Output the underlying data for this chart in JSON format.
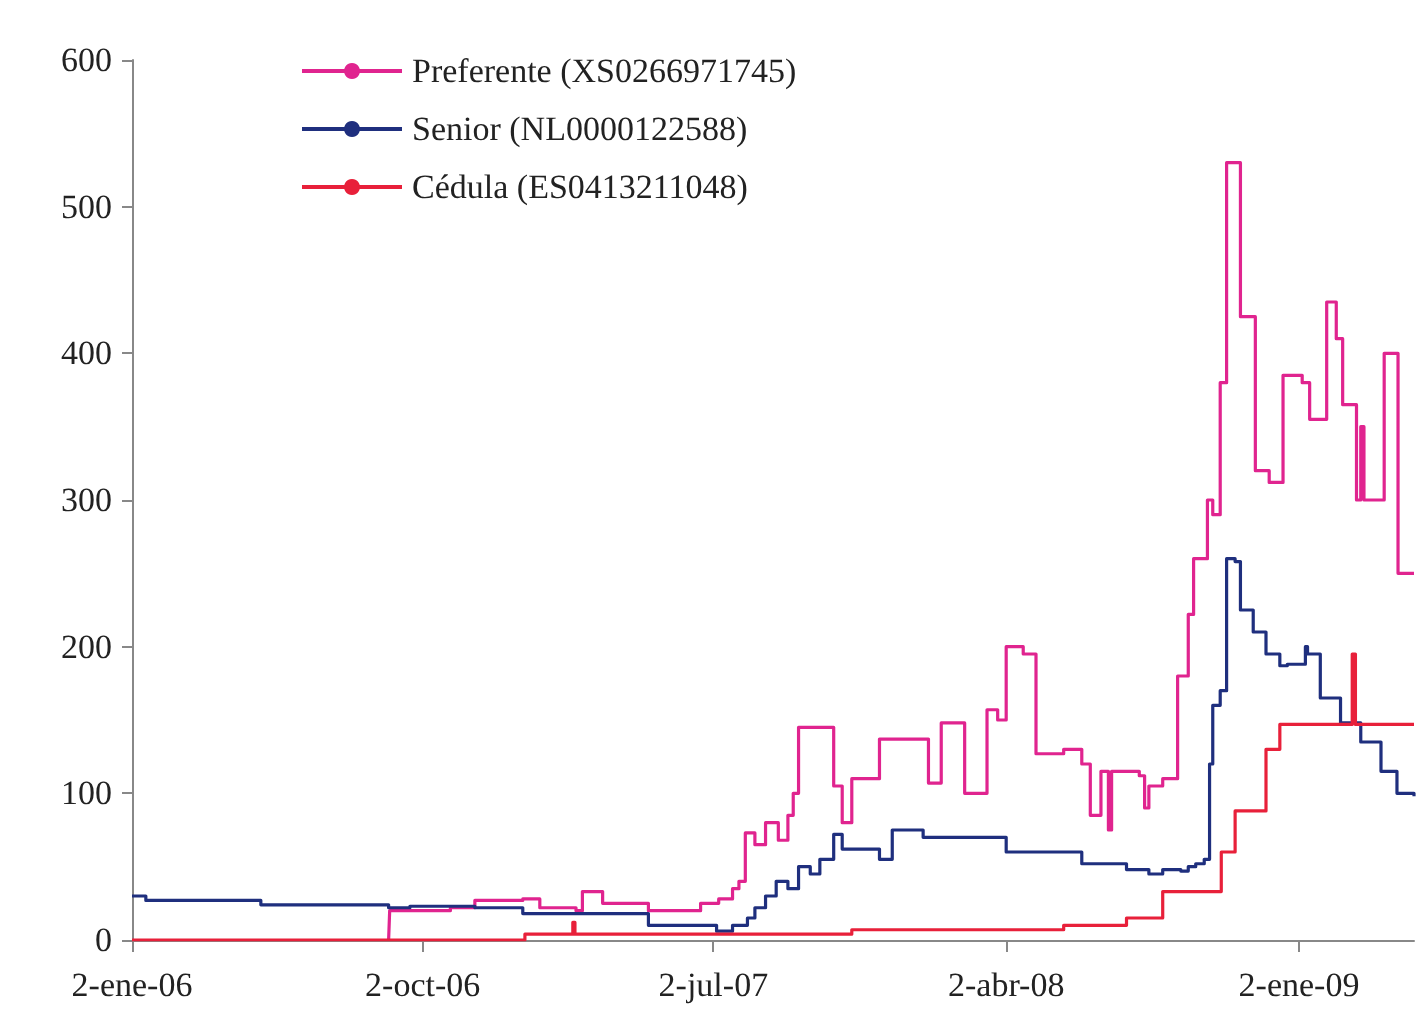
{
  "chart_data": {
    "type": "step",
    "xlim": [
      "2006-01-02",
      "2009-04-20"
    ],
    "ylim": [
      0,
      600
    ],
    "yticks": [
      0,
      100,
      200,
      300,
      400,
      500,
      600
    ],
    "xticks": [
      {
        "value": "2006-01-02",
        "label": "2-ene-06"
      },
      {
        "value": "2006-10-02",
        "label": "2-oct-06"
      },
      {
        "value": "2007-07-02",
        "label": "2-jul-07"
      },
      {
        "value": "2008-04-02",
        "label": "2-abr-08"
      },
      {
        "value": "2009-01-02",
        "label": "2-ene-09"
      }
    ],
    "grid": false,
    "legend": "top left",
    "marker": "none",
    "line_style": "solid",
    "series": [
      {
        "name": "Preferente (XS0266971745)",
        "color": "#e0248f",
        "x": [
          "2006-08-31",
          "2006-09-01",
          "2006-10-28",
          "2006-11-20",
          "2007-01-04",
          "2007-01-20",
          "2007-02-23",
          "2007-03-01",
          "2007-03-20",
          "2007-05-02",
          "2007-06-05",
          "2007-06-20",
          "2007-07-07",
          "2007-07-20",
          "2007-07-26",
          "2007-08-01",
          "2007-08-10",
          "2007-08-20",
          "2007-09-01",
          "2007-09-10",
          "2007-09-15",
          "2007-09-20",
          "2007-10-10",
          "2007-10-23",
          "2007-10-31",
          "2007-11-09",
          "2007-11-30",
          "2007-12-05",
          "2008-01-15",
          "2008-01-20",
          "2008-02-01",
          "2008-02-10",
          "2008-02-23",
          "2008-03-10",
          "2008-03-15",
          "2008-03-25",
          "2008-04-02",
          "2008-04-18",
          "2008-04-25",
          "2008-04-30",
          "2008-05-26",
          "2008-06-12",
          "2008-06-20",
          "2008-06-30",
          "2008-07-07",
          "2008-07-10",
          "2008-08-05",
          "2008-08-10",
          "2008-08-14",
          "2008-08-27",
          "2008-09-05",
          "2008-09-10",
          "2008-09-20",
          "2008-09-25",
          "2008-10-03",
          "2008-10-08",
          "2008-10-13",
          "2008-10-20",
          "2008-10-26",
          "2008-11-05",
          "2008-11-08",
          "2008-11-15",
          "2008-11-22",
          "2008-12-05",
          "2008-12-15",
          "2008-12-18",
          "2009-01-05",
          "2009-01-12",
          "2009-01-22",
          "2009-01-28",
          "2009-02-06",
          "2009-02-12",
          "2009-02-20",
          "2009-02-25",
          "2009-03-01",
          "2009-03-04",
          "2009-03-20",
          "2009-03-23",
          "2009-03-30",
          "2009-04-05",
          "2009-04-20"
        ],
        "values": [
          0,
          20,
          22,
          27,
          28,
          22,
          20,
          33,
          25,
          20,
          20,
          25,
          28,
          35,
          40,
          73,
          65,
          80,
          68,
          85,
          100,
          145,
          145,
          105,
          80,
          110,
          110,
          137,
          137,
          107,
          148,
          148,
          100,
          100,
          157,
          150,
          200,
          195,
          195,
          127,
          130,
          120,
          85,
          115,
          75,
          115,
          112,
          90,
          105,
          110,
          110,
          180,
          222,
          260,
          260,
          300,
          290,
          380,
          530,
          530,
          425,
          425,
          320,
          312,
          312,
          385,
          380,
          355,
          355,
          435,
          410,
          365,
          365,
          300,
          350,
          300,
          300,
          400,
          400,
          250,
          250
        ]
      },
      {
        "name": "Senior (NL0000122588)",
        "color": "#1f2f7e",
        "x": [
          "2006-01-02",
          "2006-01-15",
          "2006-05-03",
          "2006-08-31",
          "2006-09-20",
          "2006-11-20",
          "2007-01-04",
          "2007-04-20",
          "2007-05-02",
          "2007-06-20",
          "2007-07-05",
          "2007-07-20",
          "2007-08-03",
          "2007-08-10",
          "2007-08-20",
          "2007-08-30",
          "2007-09-10",
          "2007-09-20",
          "2007-10-01",
          "2007-10-10",
          "2007-10-23",
          "2007-10-31",
          "2007-11-30",
          "2007-12-05",
          "2007-12-10",
          "2007-12-17",
          "2008-01-15",
          "2008-04-02",
          "2008-06-12",
          "2008-07-24",
          "2008-08-14",
          "2008-08-27",
          "2008-09-13",
          "2008-09-20",
          "2008-09-27",
          "2008-10-05",
          "2008-10-10",
          "2008-10-13",
          "2008-10-20",
          "2008-10-26",
          "2008-11-03",
          "2008-11-08",
          "2008-11-20",
          "2008-12-02",
          "2008-12-15",
          "2008-12-22",
          "2009-01-08",
          "2009-01-10",
          "2009-01-22",
          "2009-02-10",
          "2009-03-01",
          "2009-03-20",
          "2009-04-04",
          "2009-04-20"
        ],
        "values": [
          30,
          27,
          24,
          22,
          23,
          22,
          18,
          18,
          10,
          10,
          6,
          10,
          15,
          22,
          30,
          40,
          35,
          50,
          45,
          55,
          72,
          62,
          62,
          55,
          55,
          75,
          70,
          60,
          52,
          48,
          45,
          48,
          47,
          50,
          52,
          55,
          120,
          160,
          170,
          260,
          258,
          225,
          210,
          195,
          187,
          188,
          200,
          195,
          165,
          148,
          135,
          115,
          100,
          98
        ]
      },
      {
        "name": "Cédula (ES0413211048)",
        "color": "#e8203a",
        "x": [
          "2006-01-02",
          "2007-01-06",
          "2007-02-20",
          "2007-02-22",
          "2007-11-09",
          "2008-05-26",
          "2008-07-24",
          "2008-08-27",
          "2008-10-21",
          "2008-11-03",
          "2008-12-02",
          "2008-12-15",
          "2009-02-19",
          "2009-02-21",
          "2009-02-24",
          "2009-04-20"
        ],
        "values": [
          0,
          4,
          12,
          4,
          7,
          10,
          15,
          33,
          60,
          88,
          130,
          147,
          147,
          195,
          147,
          147
        ]
      }
    ]
  }
}
